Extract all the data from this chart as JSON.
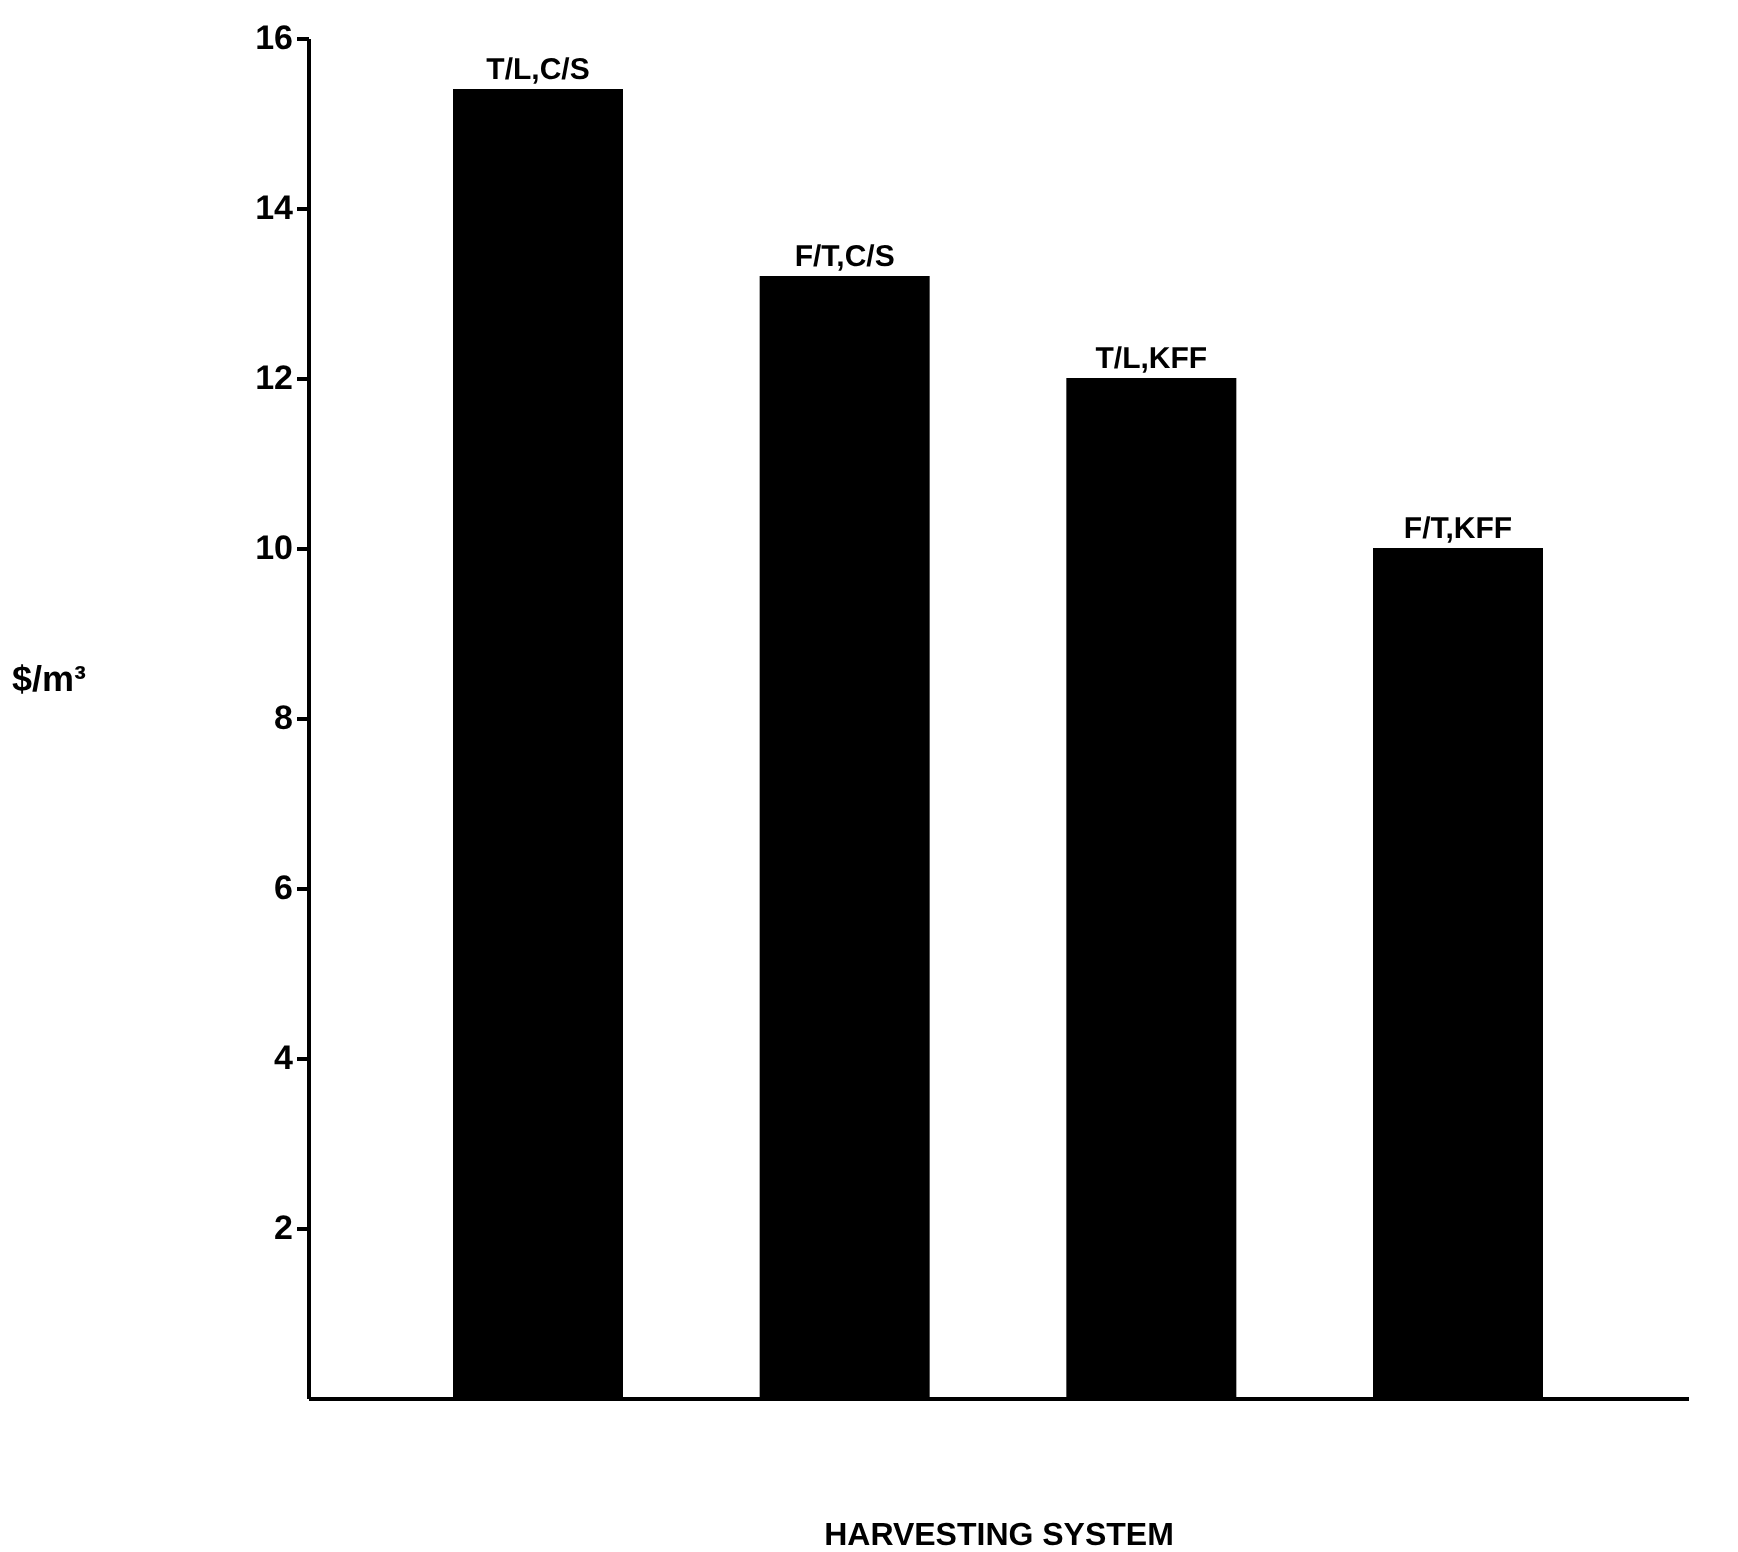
{
  "chart_data": {
    "type": "bar",
    "xlabel": "HARVESTING   SYSTEM",
    "ylabel": "$/m³",
    "categories": [
      "T/L,C/S",
      "F/T,C/S",
      "T/L,KFF",
      "F/T,KFF"
    ],
    "values": [
      15.4,
      13.2,
      12.0,
      10.0
    ],
    "color": "#000000",
    "ylim": [
      0,
      16
    ],
    "yticks": [
      2,
      4,
      6,
      8,
      10,
      12,
      14,
      16
    ],
    "grid": false,
    "tick_labels": "y"
  }
}
